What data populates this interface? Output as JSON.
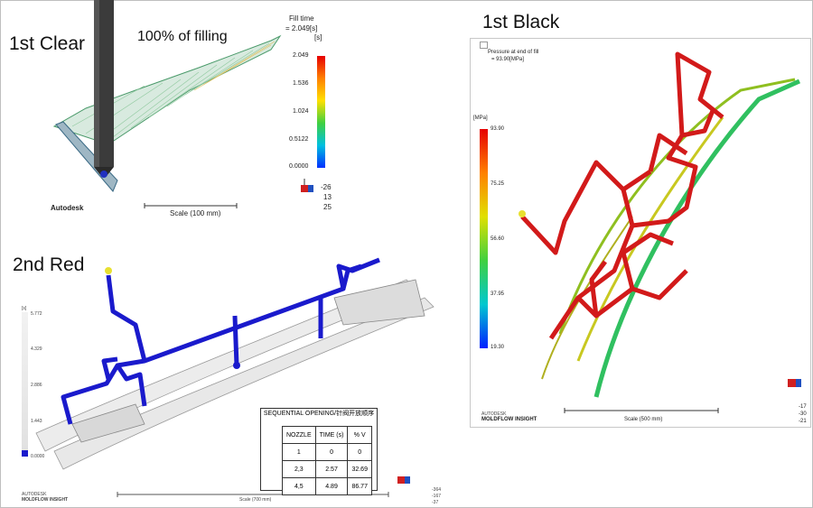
{
  "clear": {
    "title": "1st Clear",
    "filling": "100% of filling",
    "legend_title": "Fill time",
    "legend_value": "= 2.049[s]",
    "unit": "[s]",
    "ticks": [
      "2.049",
      "1.536",
      "1.024",
      "0.5122",
      "0.0000"
    ],
    "logo": "Autodesk",
    "scale": "Scale (100 mm)",
    "coords": [
      "-26",
      "13",
      "25"
    ]
  },
  "black": {
    "title": "1st Black",
    "legend_title": "Pressure at end of fill",
    "legend_value": "= 93.90[MPa]",
    "unit": "[MPa]",
    "ticks": [
      "93.90",
      "75.25",
      "56.60",
      "37.95",
      "19.30"
    ],
    "brand1": "AUTODESK",
    "brand2": "MOLDFLOW INSIGHT",
    "scale": "Scale (500 mm)",
    "coords": [
      "-17",
      "-30",
      "-21"
    ]
  },
  "red": {
    "title": "2nd Red",
    "unit": "[s]",
    "ticks": [
      "5.772",
      "4.329",
      "2.886",
      "1.443",
      "0.0000"
    ],
    "brand1": "AUTODESK",
    "brand2": "MOLDFLOW INSIGHT",
    "scale": "Scale (700 mm)",
    "coords": [
      "-364",
      "-167",
      "-37"
    ],
    "sequence": {
      "title": "SEQUENTIAL OPENING/针阀开放顺序",
      "headers": [
        "NOZZLE",
        "TIME (s)",
        "% V"
      ],
      "rows": [
        [
          "1",
          "0",
          "0"
        ],
        [
          "2,3",
          "2.57",
          "32.69"
        ],
        [
          "4,5",
          "4.89",
          "86.77"
        ]
      ]
    }
  },
  "colors": {
    "runner_red": "#d21a1a",
    "runner_blue": "#1a1acc",
    "gate_yellow": "#e8e030"
  }
}
